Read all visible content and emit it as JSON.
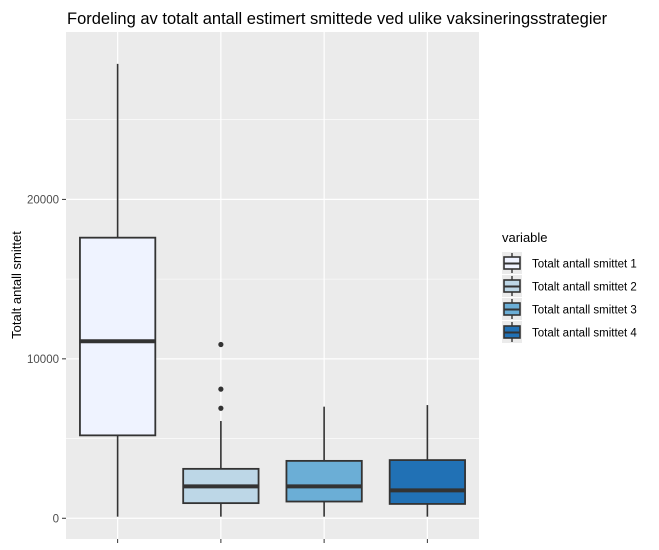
{
  "chart_data": {
    "type": "boxplot",
    "title": "Fordeling av totalt antall estimert smittede ved ulike vaksineringsstrategier",
    "xlabel": "",
    "ylabel": "Totalt antall smittet",
    "ylim": [
      -1300,
      30500
    ],
    "yticks": [
      0,
      10000,
      20000
    ],
    "ytick_labels": [
      "0",
      "10000",
      "20000"
    ],
    "grid": true,
    "legend": {
      "title": "variable",
      "position": "right"
    },
    "series": [
      {
        "name": "Totalt antall smittet 1",
        "color": "#eff3ff",
        "min": 100,
        "q1": 5200,
        "median": 11100,
        "q3": 17600,
        "max": 28500,
        "outliers": []
      },
      {
        "name": "Totalt antall smittet 2",
        "color": "#bdd7e7",
        "min": 100,
        "q1": 950,
        "median": 2000,
        "q3": 3100,
        "max": 6100,
        "outliers": [
          6900,
          8100,
          10900
        ]
      },
      {
        "name": "Totalt antall smittet 3",
        "color": "#6baed6",
        "min": 100,
        "q1": 1050,
        "median": 2000,
        "q3": 3600,
        "max": 7000,
        "outliers": []
      },
      {
        "name": "Totalt antall smittet 4",
        "color": "#2171b5",
        "min": 100,
        "q1": 900,
        "median": 1750,
        "q3": 3650,
        "max": 7100,
        "outliers": []
      }
    ]
  }
}
